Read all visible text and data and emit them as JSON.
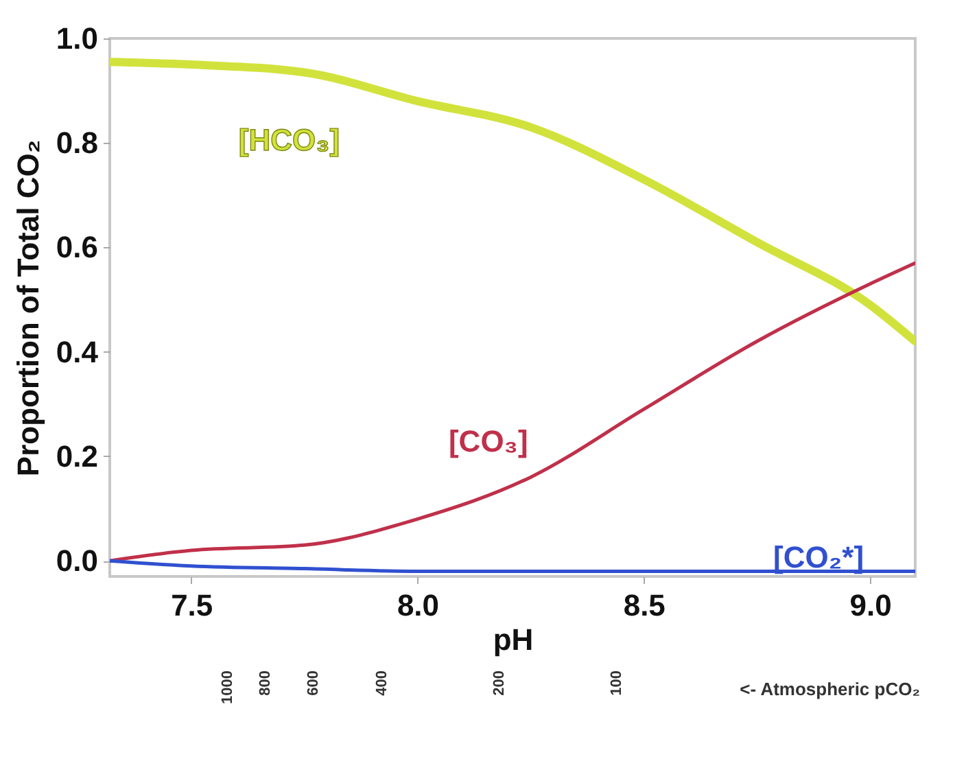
{
  "chart_data": {
    "type": "line",
    "xlabel": "pH",
    "ylabel": "Proportion of Total CO₂",
    "x": [
      7.32,
      7.5,
      7.75,
      8.0,
      8.25,
      8.5,
      8.75,
      9.0,
      9.1
    ],
    "series": [
      {
        "name": "[HCO₃]",
        "color": "#d2e23c",
        "values": [
          0.955,
          0.95,
          0.935,
          0.88,
          0.83,
          0.73,
          0.61,
          0.49,
          0.42
        ]
      },
      {
        "name": "[CO₃]",
        "color": "#c0304a",
        "values": [
          0.0,
          0.02,
          0.03,
          0.08,
          0.16,
          0.29,
          0.42,
          0.53,
          0.57
        ]
      },
      {
        "name": "[CO₂*]",
        "color": "#3050d0",
        "values": [
          0.0,
          -0.01,
          -0.015,
          -0.02,
          -0.02,
          -0.02,
          -0.02,
          -0.02,
          -0.02
        ]
      }
    ],
    "xlim": [
      7.32,
      9.1
    ],
    "ylim": [
      -0.03,
      1.0
    ],
    "xticks": [
      7.5,
      {
        "value": 8.0,
        "label": "8.0"
      },
      8.5,
      {
        "value": 9.0,
        "label": "9.0"
      }
    ],
    "yticks": [
      {
        "value": 0,
        "label": "0.0"
      },
      0.2,
      0.4,
      0.6,
      0.8,
      {
        "value": 1.0,
        "label": "1.0"
      }
    ],
    "x2lim": [
      2000,
      17
    ],
    "log": "x2",
    "x2ticks": [
      1000,
      800,
      600,
      400,
      200,
      100
    ],
    "x2label": "<- Atmospheric pCO₂",
    "grid": false,
    "legend": false,
    "marker": "none",
    "line_style": "solid"
  }
}
